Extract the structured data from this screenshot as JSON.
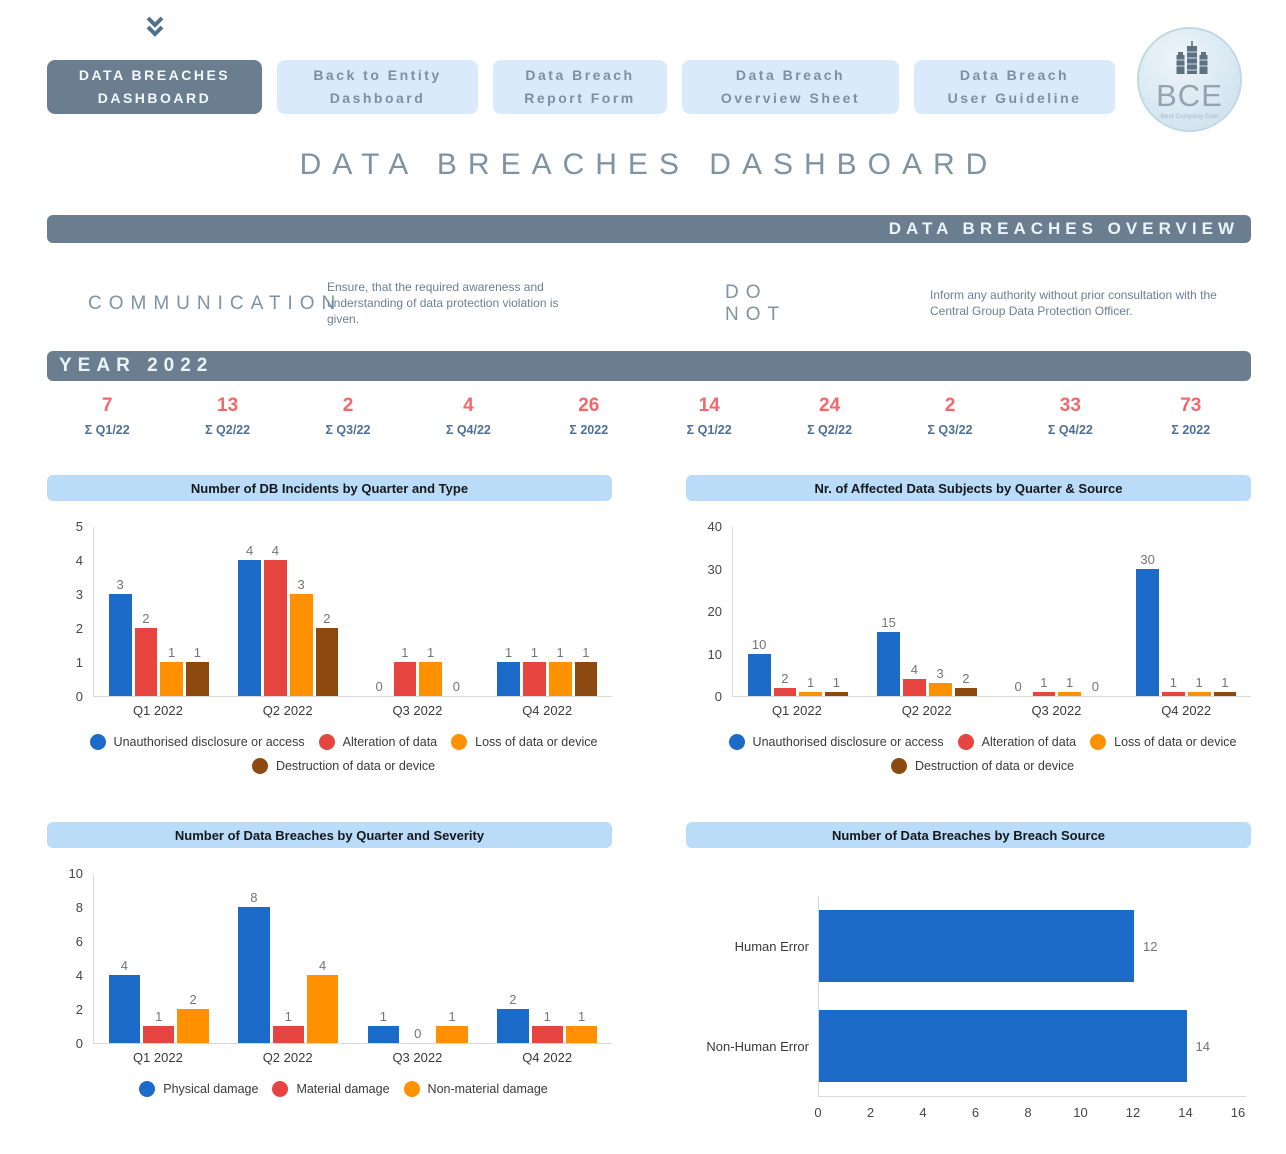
{
  "icons": {
    "collapse": "chevron-double-down",
    "logo": "city-buildings"
  },
  "nav": {
    "buttons": [
      {
        "line1": "DATA BREACHES",
        "line2": "DASHBOARD",
        "active": true
      },
      {
        "line1": "Back to Entity",
        "line2": "Dashboard",
        "active": false
      },
      {
        "line1": "Data Breach",
        "line2": "Report Form",
        "active": false
      },
      {
        "line1": "Data Breach",
        "line2": "Overview Sheet",
        "active": false
      },
      {
        "line1": "Data Breach",
        "line2": "User Guideline",
        "active": false
      }
    ],
    "logo": {
      "text": "BCE",
      "subtext": "Best Company Ever"
    }
  },
  "page_title": "DATA BREACHES DASHBOARD",
  "overview_banner": "DATA BREACHES OVERVIEW",
  "guidance": [
    {
      "term": "COMMUNICATION",
      "description": "Ensure, that the required awareness and understanding of data protection violation is given."
    },
    {
      "term": "DO NOT",
      "description": "Inform any authority without prior consultation with the Central Group Data Protection Officer."
    }
  ],
  "year_banner": "YEAR 2022",
  "stats": {
    "left": [
      {
        "value": "7",
        "label": "Σ Q1/22"
      },
      {
        "value": "13",
        "label": "Σ Q2/22"
      },
      {
        "value": "2",
        "label": "Σ Q3/22"
      },
      {
        "value": "4",
        "label": "Σ Q4/22"
      },
      {
        "value": "26",
        "label": "Σ 2022"
      }
    ],
    "right": [
      {
        "value": "14",
        "label": "Σ Q1/22"
      },
      {
        "value": "24",
        "label": "Σ Q2/22"
      },
      {
        "value": "2",
        "label": "Σ Q3/22"
      },
      {
        "value": "33",
        "label": "Σ Q4/22"
      },
      {
        "value": "73",
        "label": "Σ 2022"
      }
    ]
  },
  "colors": {
    "accent_slate": "#6B7E8F",
    "chart_band_blue": "#BBDCF8",
    "nav_button_bg": "#D9EBFA",
    "nav_button_text": "#7C90A4",
    "stat_number": "#F5676A",
    "stat_label": "#4F7096",
    "series_blue": "#1C6BC8",
    "series_red": "#E6453F",
    "series_orange": "#FF9100",
    "series_brown": "#8C4A10"
  },
  "chart_data": [
    {
      "type": "bar",
      "title": "Number of DB Incidents by Quarter and Type",
      "categories": [
        "Q1 2022",
        "Q2 2022",
        "Q3 2022",
        "Q4 2022"
      ],
      "series": [
        {
          "name": "Unauthorised disclosure or access",
          "color": "#1C6BC8",
          "values": [
            3,
            4,
            0,
            1
          ]
        },
        {
          "name": "Alteration of data",
          "color": "#E6453F",
          "values": [
            2,
            4,
            1,
            1
          ]
        },
        {
          "name": "Loss of data or device",
          "color": "#FF9100",
          "values": [
            1,
            3,
            1,
            1
          ]
        },
        {
          "name": "Destruction of data or device",
          "color": "#8C4A10",
          "values": [
            1,
            2,
            0,
            1
          ]
        }
      ],
      "xlabel": "",
      "ylabel": "",
      "ylim": [
        0,
        5
      ],
      "yticks": [
        0,
        1,
        2,
        3,
        4,
        5
      ],
      "grid": false,
      "legend_position": "bottom"
    },
    {
      "type": "bar",
      "title": "Nr. of Affected Data Subjects by Quarter & Source",
      "categories": [
        "Q1 2022",
        "Q2 2022",
        "Q3 2022",
        "Q4 2022"
      ],
      "series": [
        {
          "name": "Unauthorised disclosure or access",
          "color": "#1C6BC8",
          "values": [
            10,
            15,
            0,
            30
          ]
        },
        {
          "name": "Alteration of data",
          "color": "#E6453F",
          "values": [
            2,
            4,
            1,
            1
          ]
        },
        {
          "name": "Loss of data or device",
          "color": "#FF9100",
          "values": [
            1,
            3,
            1,
            1
          ]
        },
        {
          "name": "Destruction of data or device",
          "color": "#8C4A10",
          "values": [
            1,
            2,
            0,
            1
          ]
        }
      ],
      "xlabel": "",
      "ylabel": "",
      "ylim": [
        0,
        40
      ],
      "yticks": [
        0,
        10,
        20,
        30,
        40
      ],
      "grid": false,
      "legend_position": "bottom"
    },
    {
      "type": "bar",
      "title": "Number of Data Breaches by Quarter and Severity",
      "categories": [
        "Q1 2022",
        "Q2 2022",
        "Q3 2022",
        "Q4 2022"
      ],
      "series": [
        {
          "name": "Physical damage",
          "color": "#1C6BC8",
          "values": [
            4,
            8,
            1,
            2
          ]
        },
        {
          "name": "Material damage",
          "color": "#E6453F",
          "values": [
            1,
            1,
            0,
            1
          ]
        },
        {
          "name": "Non-material damage",
          "color": "#FF9100",
          "values": [
            2,
            4,
            1,
            1
          ]
        }
      ],
      "xlabel": "",
      "ylabel": "",
      "ylim": [
        0,
        10
      ],
      "yticks": [
        0,
        2,
        4,
        6,
        8,
        10
      ],
      "grid": false,
      "legend_position": "bottom"
    },
    {
      "type": "bar-horizontal",
      "title": "Number of Data Breaches by Breach Source",
      "categories": [
        "Human Error",
        "Non-Human Error"
      ],
      "values": [
        12,
        14
      ],
      "color": "#1C6BC8",
      "xlabel": "",
      "ylabel": "",
      "xlim": [
        0,
        16
      ],
      "xticks": [
        0,
        2,
        4,
        6,
        8,
        10,
        12,
        14,
        16
      ],
      "grid": false,
      "legend_position": "none"
    }
  ]
}
